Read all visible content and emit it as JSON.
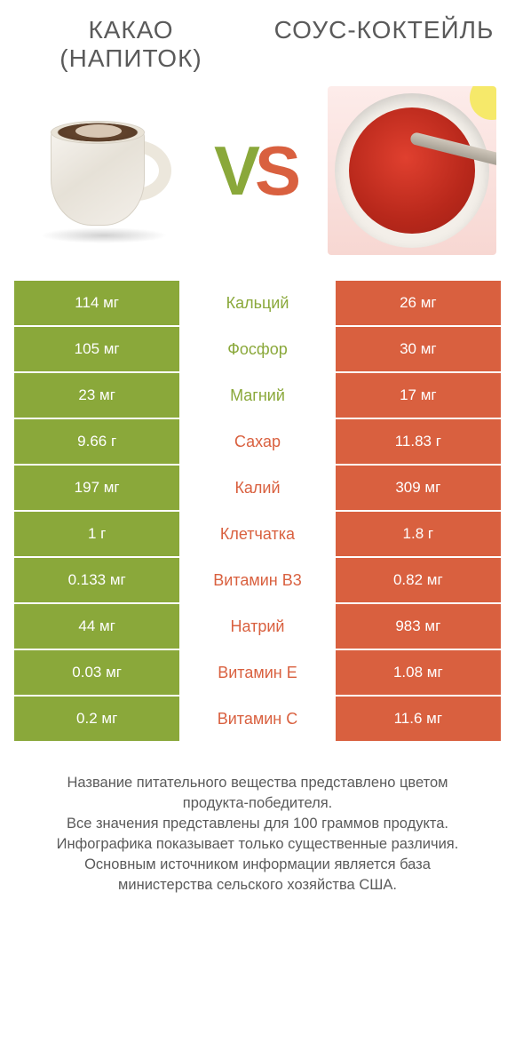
{
  "titles": {
    "left": "КАКАО (НАПИТОК)",
    "right": "СОУС-КОКТЕЙЛЬ"
  },
  "vs": {
    "v": "V",
    "s": "S"
  },
  "colors": {
    "green": "#8aa83a",
    "red": "#d9603f",
    "text": "#5a5a5a",
    "background": "#ffffff"
  },
  "rows": [
    {
      "label": "Кальций",
      "left": "114 мг",
      "right": "26 мг",
      "winner": "left"
    },
    {
      "label": "Фосфор",
      "left": "105 мг",
      "right": "30 мг",
      "winner": "left"
    },
    {
      "label": "Магний",
      "left": "23 мг",
      "right": "17 мг",
      "winner": "left"
    },
    {
      "label": "Сахар",
      "left": "9.66 г",
      "right": "11.83 г",
      "winner": "right"
    },
    {
      "label": "Калий",
      "left": "197 мг",
      "right": "309 мг",
      "winner": "right"
    },
    {
      "label": "Клетчатка",
      "left": "1 г",
      "right": "1.8 г",
      "winner": "right"
    },
    {
      "label": "Витамин B3",
      "left": "0.133 мг",
      "right": "0.82 мг",
      "winner": "right"
    },
    {
      "label": "Натрий",
      "left": "44 мг",
      "right": "983 мг",
      "winner": "right"
    },
    {
      "label": "Витамин E",
      "left": "0.03 мг",
      "right": "1.08 мг",
      "winner": "right"
    },
    {
      "label": "Витамин C",
      "left": "0.2 мг",
      "right": "11.6 мг",
      "winner": "right"
    }
  ],
  "footer": {
    "l1": "Название питательного вещества представлено цветом продукта-победителя.",
    "l2": "Все значения представлены для 100 граммов продукта.",
    "l3": "Инфографика показывает только существенные различия.",
    "l4": "Основным источником информации является база министерства сельского хозяйства США."
  }
}
